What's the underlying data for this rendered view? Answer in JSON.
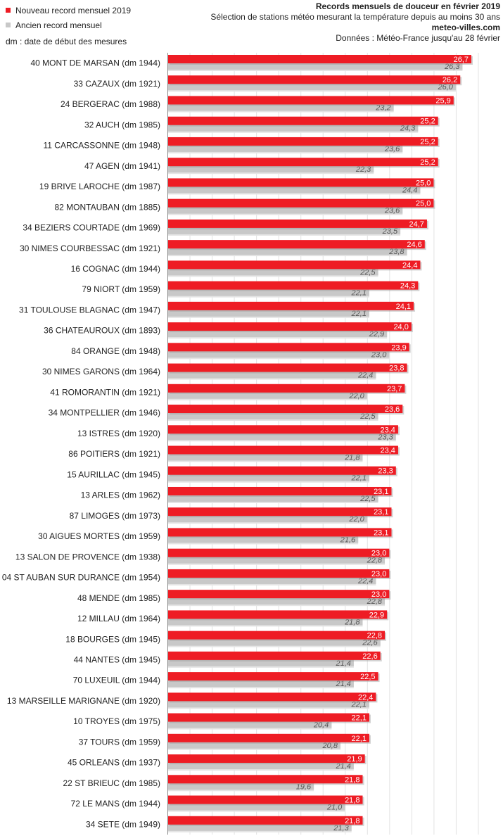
{
  "legend": {
    "new_label": "Nouveau record mensuel 2019",
    "old_label": "Ancien record mensuel",
    "note": "dm : date de début des mesures"
  },
  "header": {
    "title": "Records mensuels de douceur en février 2019",
    "subtitle": "Sélection de stations météo mesurant la température depuis au moins 30 ans",
    "site": "meteo-villes.com",
    "source": "Données : Météo-France jusqu'au 28 février"
  },
  "colors": {
    "new": "#ee1c24",
    "old": "#c8c8c8",
    "grid": "#e2e2e2"
  },
  "chart_data": {
    "type": "bar",
    "orientation": "horizontal",
    "categories": [
      "40 MONT DE MARSAN (dm 1944)",
      "33 CAZAUX (dm 1921)",
      "24 BERGERAC (dm 1988)",
      "32 AUCH (dm 1985)",
      "11 CARCASSONNE (dm 1948)",
      "47 AGEN (dm 1941)",
      "19 BRIVE LAROCHE (dm 1987)",
      "82 MONTAUBAN (dm 1885)",
      "34 BEZIERS COURTADE (dm 1969)",
      "30 NIMES COURBESSAC (dm 1921)",
      "16 COGNAC (dm 1944)",
      "79 NIORT (dm 1959)",
      "31 TOULOUSE BLAGNAC (dm 1947)",
      "36 CHATEAUROUX (dm 1893)",
      "84 ORANGE (dm 1948)",
      "30 NIMES GARONS (dm 1964)",
      "41 ROMORANTIN (dm 1921)",
      "34 MONTPELLIER (dm 1946)",
      "13 ISTRES (dm 1920)",
      "86 POITIERS (dm 1921)",
      "15 AURILLAC (dm 1945)",
      "13 ARLES (dm 1962)",
      "87 LIMOGES (dm 1973)",
      "30 AIGUES MORTES (dm 1959)",
      "13 SALON DE PROVENCE (dm 1938)",
      "04 ST AUBAN SUR DURANCE (dm 1954)",
      "48 MENDE (dm 1985)",
      "12 MILLAU (dm 1964)",
      "18 BOURGES (dm 1945)",
      "44 NANTES (dm 1945)",
      "70 LUXEUIL (dm 1944)",
      "13 MARSEILLE MARIGNANE (dm 1920)",
      "10 TROYES (dm 1975)",
      "37 TOURS (dm 1959)",
      "45 ORLEANS (dm 1937)",
      "22 ST BRIEUC (dm 1985)",
      "72 LE MANS (dm 1944)",
      "34 SETE (dm 1949)"
    ],
    "series": [
      {
        "name": "Nouveau record mensuel 2019",
        "values": [
          26.7,
          26.2,
          25.9,
          25.2,
          25.2,
          25.2,
          25.0,
          25.0,
          24.7,
          24.6,
          24.4,
          24.3,
          24.1,
          24.0,
          23.9,
          23.8,
          23.7,
          23.6,
          23.4,
          23.4,
          23.3,
          23.1,
          23.1,
          23.1,
          23.0,
          23.0,
          23.0,
          22.9,
          22.8,
          22.6,
          22.5,
          22.4,
          22.1,
          22.1,
          21.9,
          21.8,
          21.8,
          21.8
        ],
        "labels": [
          "26,7",
          "26,2",
          "25,9",
          "25,2",
          "25,2",
          "25,2",
          "25,0",
          "25,0",
          "24,7",
          "24,6",
          "24,4",
          "24,3",
          "24,1",
          "24,0",
          "23,9",
          "23,8",
          "23,7",
          "23,6",
          "23,4",
          "23,4",
          "23,3",
          "23,1",
          "23,1",
          "23,1",
          "23,0",
          "23,0",
          "23,0",
          "22,9",
          "22,8",
          "22,6",
          "22,5",
          "22,4",
          "22,1",
          "22,1",
          "21,9",
          "21,8",
          "21,8",
          "21,8"
        ]
      },
      {
        "name": "Ancien record mensuel",
        "values": [
          26.3,
          26.0,
          23.2,
          24.3,
          23.6,
          22.3,
          24.4,
          23.6,
          23.5,
          23.8,
          22.5,
          22.1,
          22.1,
          22.9,
          23.0,
          22.4,
          22.0,
          22.5,
          23.3,
          21.8,
          22.1,
          22.5,
          22.0,
          21.6,
          22.8,
          22.4,
          22.8,
          21.8,
          22.6,
          21.4,
          21.4,
          22.1,
          20.4,
          20.8,
          21.4,
          19.6,
          21.0,
          21.3
        ],
        "labels": [
          "26,3",
          "26,0",
          "23,2",
          "24,3",
          "23,6",
          "22,3",
          "24,4",
          "23,6",
          "23,5",
          "23,8",
          "22,5",
          "22,1",
          "22,1",
          "22,9",
          "23,0",
          "22,4",
          "22,0",
          "22,5",
          "23,3",
          "21,8",
          "22,1",
          "22,5",
          "22,0",
          "21,6",
          "22,8",
          "22,4",
          "22,8",
          "21,8",
          "22,6",
          "21,4",
          "21,4",
          "22,1",
          "20,4",
          "20,8",
          "21,4",
          "19,6",
          "21,0",
          "21,3"
        ]
      }
    ],
    "xlim": [
      13,
      28
    ],
    "grid": true
  }
}
